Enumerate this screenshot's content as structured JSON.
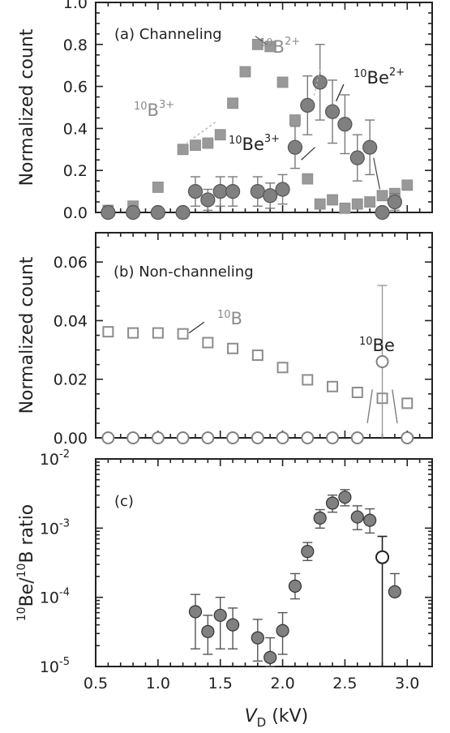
{
  "chart_data": [
    {
      "type": "scatter",
      "panel_label": "(a) Channeling",
      "ylabel": "Normalized count",
      "ylim": [
        0,
        1.0
      ],
      "yticks": [
        "0.0",
        "0.2",
        "0.4",
        "0.6",
        "0.8",
        "1.0"
      ],
      "xlim": [
        0.5,
        3.2
      ],
      "series": [
        {
          "name": "10B",
          "label_parts": [
            {
              "sup": "10",
              "base": "B",
              "charge": "2+"
            },
            {
              "sup": "10",
              "base": "B",
              "charge": "3+"
            }
          ],
          "marker": "filled-square",
          "color": "#999999",
          "x": [
            0.6,
            0.8,
            1.0,
            1.2,
            1.3,
            1.4,
            1.5,
            1.6,
            1.7,
            1.8,
            1.9,
            2.0,
            2.1,
            2.2,
            2.3,
            2.4,
            2.5,
            2.6,
            2.7,
            2.8,
            2.9,
            3.0
          ],
          "y": [
            0.01,
            0.03,
            0.12,
            0.3,
            0.32,
            0.33,
            0.37,
            0.52,
            0.67,
            0.8,
            0.79,
            0.62,
            0.44,
            0.16,
            0.04,
            0.06,
            0.02,
            0.04,
            0.05,
            0.08,
            0.09,
            0.13
          ]
        },
        {
          "name": "10Be",
          "label_parts": [
            {
              "sup": "10",
              "base": "Be",
              "charge": "2+"
            },
            {
              "sup": "10",
              "base": "Be",
              "charge": "3+"
            }
          ],
          "marker": "filled-circle",
          "color": "#808080",
          "x": [
            0.6,
            0.8,
            1.0,
            1.2,
            1.3,
            1.4,
            1.5,
            1.6,
            1.8,
            1.9,
            2.0,
            2.1,
            2.2,
            2.3,
            2.4,
            2.5,
            2.6,
            2.7,
            2.8,
            2.9
          ],
          "y": [
            0.0,
            0.0,
            0.0,
            0.0,
            0.1,
            0.06,
            0.1,
            0.1,
            0.1,
            0.08,
            0.11,
            0.31,
            0.51,
            0.62,
            0.48,
            0.42,
            0.26,
            0.31,
            0.0,
            0.05
          ],
          "err": [
            0,
            0,
            0,
            0,
            0.07,
            0.05,
            0.07,
            0.07,
            0.07,
            0.06,
            0.07,
            0.1,
            0.14,
            0.18,
            0.15,
            0.14,
            0.11,
            0.13,
            0,
            0.04
          ]
        }
      ]
    },
    {
      "type": "scatter",
      "panel_label": "(b) Non-channeling",
      "ylabel": "Normalized count",
      "ylim": [
        0,
        0.07
      ],
      "yticks": [
        "0.00",
        "0.02",
        "0.04",
        "0.06"
      ],
      "xlim": [
        0.5,
        3.2
      ],
      "series": [
        {
          "name": "10B",
          "label_parts": [
            {
              "sup": "10",
              "base": "B"
            }
          ],
          "marker": "open-square",
          "color": "#8c8c8c",
          "x": [
            0.6,
            0.8,
            1.0,
            1.2,
            1.4,
            1.6,
            1.8,
            2.0,
            2.2,
            2.4,
            2.6,
            2.8,
            3.0
          ],
          "y": [
            0.0362,
            0.0358,
            0.0358,
            0.0355,
            0.0325,
            0.0305,
            0.0282,
            0.024,
            0.0198,
            0.0175,
            0.0155,
            0.0135,
            0.0118
          ]
        },
        {
          "name": "10Be",
          "label_parts": [
            {
              "sup": "10",
              "base": "Be"
            }
          ],
          "marker": "open-circle",
          "color": "#808080",
          "x": [
            0.6,
            0.8,
            1.0,
            1.2,
            1.4,
            1.6,
            1.8,
            2.0,
            2.2,
            2.4,
            2.6,
            2.8,
            3.0
          ],
          "y": [
            0,
            0,
            0,
            0,
            0,
            0,
            0,
            0,
            0,
            0,
            0,
            0.026,
            0
          ],
          "err_up": [
            0,
            0,
            0,
            0,
            0,
            0,
            0,
            0,
            0,
            0,
            0,
            0.026,
            0
          ],
          "err_down": [
            0,
            0,
            0,
            0,
            0,
            0,
            0,
            0,
            0,
            0,
            0,
            0.026,
            0
          ]
        }
      ]
    },
    {
      "type": "scatter",
      "panel_label": "(c)",
      "ylabel_parts": {
        "sup1": "10",
        "mid": "Be/",
        "sup2": "10",
        "end": "B ratio"
      },
      "yscale": "log",
      "ylim": [
        1e-05,
        0.01
      ],
      "yticks": [
        {
          "base": "10",
          "exp": "-5"
        },
        {
          "base": "10",
          "exp": "-4"
        },
        {
          "base": "10",
          "exp": "-3"
        },
        {
          "base": "10",
          "exp": "-2"
        }
      ],
      "xlim": [
        0.5,
        3.2
      ],
      "xticks": [
        "0.5",
        "1.0",
        "1.5",
        "2.0",
        "2.5",
        "3.0"
      ],
      "xlabel_parts": {
        "main": "V",
        "sub": "D",
        "unit": " (kV)"
      },
      "series": [
        {
          "name": "channeling",
          "marker": "filled-circle",
          "color": "#808080",
          "x": [
            1.3,
            1.4,
            1.5,
            1.6,
            1.8,
            1.9,
            2.0,
            2.1,
            2.2,
            2.3,
            2.4,
            2.5,
            2.6,
            2.7,
            2.9
          ],
          "y": [
            6.2e-05,
            3.2e-05,
            5.5e-05,
            4e-05,
            2.6e-05,
            1.35e-05,
            3.3e-05,
            0.000145,
            0.00046,
            0.0014,
            0.0023,
            0.0028,
            0.00145,
            0.0013,
            0.00012
          ],
          "err_up": [
            0.00011,
            5.5e-05,
            0.0001,
            7e-05,
            4.8e-05,
            2.6e-05,
            6e-05,
            0.00022,
            0.00062,
            0.00185,
            0.003,
            0.0036,
            0.0021,
            0.0019,
            0.00022
          ],
          "err_down": [
            1.8e-05,
            1.5e-05,
            1.8e-05,
            1.8e-05,
            1.2e-05,
            1e-05,
            1.5e-05,
            9.5e-05,
            0.00034,
            0.001,
            0.0017,
            0.0021,
            0.00095,
            0.00085,
            0.00012
          ]
        },
        {
          "name": "non-channeling",
          "marker": "open-circle",
          "color": "#222222",
          "x": [
            2.8
          ],
          "y": [
            0.00038
          ],
          "err_up": [
            0.00076
          ],
          "err_down": [
            9.9e-06
          ]
        }
      ]
    }
  ]
}
